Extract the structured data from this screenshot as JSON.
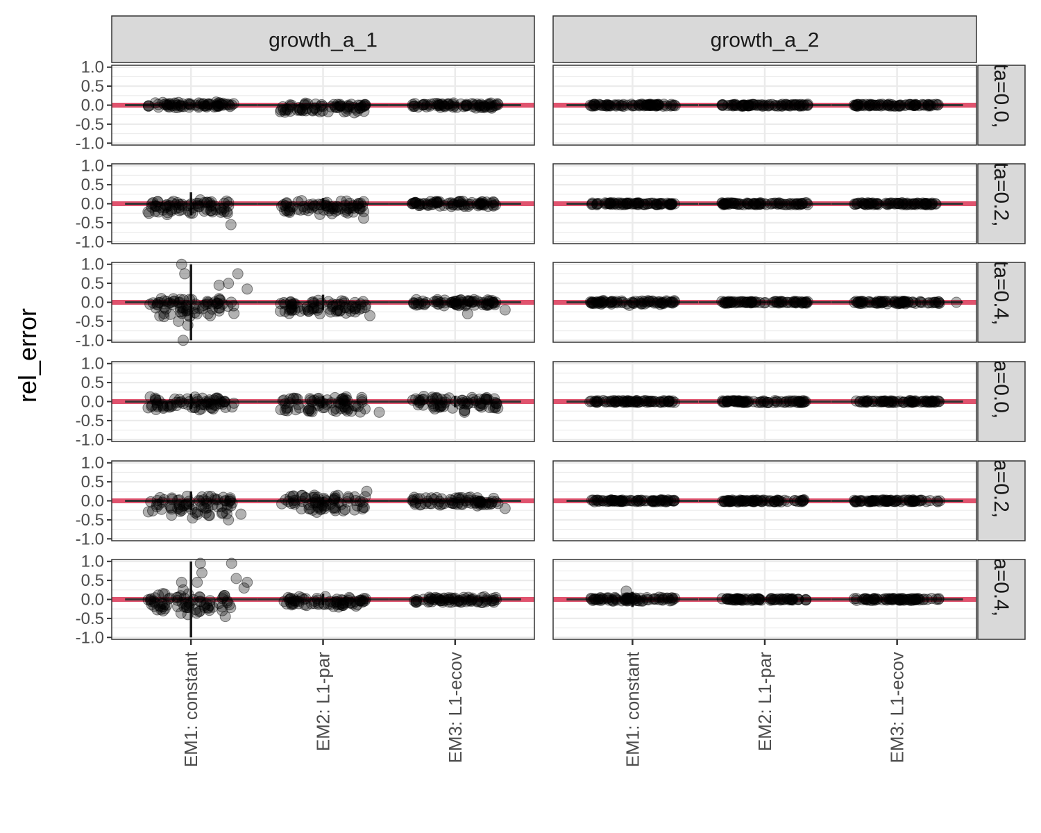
{
  "chart_data": {
    "type": "scatter",
    "ylabel": "rel_error",
    "xlabel": "",
    "ylim": [
      -1.05,
      1.05
    ],
    "y_ticks": [
      1.0,
      0.5,
      0.0,
      -0.5,
      -1.0
    ],
    "y_tick_labels": [
      "1.0",
      "0.5",
      "0.0",
      "-0.5",
      "-1.0"
    ],
    "categories": [
      "EM1: constant",
      "EM2: L1-par",
      "EM3: L1-ecov"
    ],
    "column_facets": [
      "growth_a_1",
      "growth_a_2"
    ],
    "row_facets": [
      "ta=0.0,",
      "ta=0.2,",
      "ta=0.4,",
      "a=0.0, ",
      "a=0.2, ",
      "a=0.4, "
    ],
    "reference_line": {
      "y": 0,
      "color": "#e0536e"
    },
    "colors": {
      "points": "#000000",
      "reference_line": "#e0536e",
      "strip_fill": "#d9d9d9",
      "panel_border": "#333333",
      "grid": "#ebebeb"
    },
    "grid": true,
    "points_alpha": 0.3,
    "panels": [
      {
        "col": 0,
        "row": 0,
        "spread": [
          [
            -0.08,
            0.1
          ],
          [
            -0.2,
            0.08
          ],
          [
            -0.08,
            0.06
          ]
        ],
        "line": [
          0.03,
          0.03,
          0.03
        ],
        "outliers": [
          [],
          [
            [
              1.0,
              -0.2
            ]
          ],
          []
        ]
      },
      {
        "col": 0,
        "row": 1,
        "spread": [
          [
            -0.3,
            0.15
          ],
          [
            -0.3,
            0.1
          ],
          [
            -0.08,
            0.08
          ]
        ],
        "line": [
          0.3,
          0.15,
          0.05
        ],
        "outliers": [
          [
            [
              1.28,
              -0.55
            ],
            [
              0.3,
              0.1
            ]
          ],
          [
            [
              -0.1,
              -0.28
            ],
            [
              1.3,
              -0.38
            ]
          ],
          []
        ]
      },
      {
        "col": 0,
        "row": 2,
        "spread": [
          [
            -0.4,
            0.15
          ],
          [
            -0.3,
            0.08
          ],
          [
            -0.1,
            0.08
          ]
        ],
        "line": [
          1.0,
          0.2,
          0.1
        ],
        "outliers": [
          [
            [
              -0.3,
              1.0
            ],
            [
              -0.2,
              0.75
            ],
            [
              -0.25,
              -1.0
            ],
            [
              -0.1,
              -0.6
            ],
            [
              1.2,
              0.5
            ],
            [
              1.5,
              0.75
            ],
            [
              1.8,
              0.35
            ],
            [
              -0.4,
              -0.5
            ],
            [
              0.9,
              0.45
            ]
          ],
          [
            [
              -0.1,
              -0.3
            ],
            [
              1.5,
              -0.35
            ]
          ],
          [
            [
              1.6,
              -0.2
            ],
            [
              0.4,
              -0.3
            ]
          ]
        ]
      },
      {
        "col": 0,
        "row": 3,
        "spread": [
          [
            -0.25,
            0.15
          ],
          [
            -0.3,
            0.15
          ],
          [
            -0.25,
            0.15
          ]
        ],
        "line": [
          0.2,
          0.15,
          0.15
        ],
        "outliers": [
          [],
          [
            [
              1.8,
              -0.28
            ]
          ],
          [
            [
              0.3,
              -0.28
            ]
          ]
        ]
      },
      {
        "col": 0,
        "row": 4,
        "spread": [
          [
            -0.45,
            0.15
          ],
          [
            -0.3,
            0.2
          ],
          [
            -0.15,
            0.12
          ]
        ],
        "line": [
          0.25,
          0.1,
          0.05
        ],
        "outliers": [
          [
            [
              0.05,
              -0.45
            ],
            [
              -0.3,
              -0.25
            ],
            [
              1.2,
              -0.5
            ],
            [
              1.6,
              -0.35
            ]
          ],
          [
            [
              -0.2,
              -0.3
            ],
            [
              1.4,
              0.25
            ]
          ],
          [
            [
              1.6,
              -0.2
            ]
          ]
        ]
      },
      {
        "col": 0,
        "row": 5,
        "spread": [
          [
            -0.4,
            0.2
          ],
          [
            -0.2,
            0.08
          ],
          [
            -0.1,
            0.08
          ]
        ],
        "line": [
          1.0,
          0.15,
          0.05
        ],
        "outliers": [
          [
            [
              -0.3,
              0.45
            ],
            [
              0.3,
              0.95
            ],
            [
              0.35,
              0.7
            ],
            [
              0.2,
              0.45
            ],
            [
              1.3,
              0.95
            ],
            [
              1.45,
              0.55
            ],
            [
              1.8,
              0.45
            ],
            [
              -0.25,
              0.25
            ],
            [
              1.7,
              0.3
            ],
            [
              -0.1,
              -0.4
            ],
            [
              1.1,
              -0.45
            ]
          ],
          [
            [
              0.5,
              -0.2
            ]
          ],
          []
        ]
      },
      {
        "col": 1,
        "row": 0,
        "spread": [
          [
            -0.03,
            0.03
          ],
          [
            -0.03,
            0.03
          ],
          [
            -0.03,
            0.03
          ]
        ],
        "line": [
          0.01,
          0.01,
          0.01
        ],
        "outliers": [
          [],
          [],
          []
        ]
      },
      {
        "col": 1,
        "row": 1,
        "spread": [
          [
            -0.03,
            0.03
          ],
          [
            -0.03,
            0.03
          ],
          [
            -0.03,
            0.03
          ]
        ],
        "line": [
          0.01,
          0.01,
          0.01
        ],
        "outliers": [
          [],
          [],
          []
        ]
      },
      {
        "col": 1,
        "row": 2,
        "spread": [
          [
            -0.06,
            0.06
          ],
          [
            -0.03,
            0.03
          ],
          [
            -0.04,
            0.04
          ]
        ],
        "line": [
          0.02,
          0.01,
          0.01
        ],
        "outliers": [
          [
            [
              -0.1,
              -0.08
            ]
          ],
          [],
          [
            [
              1.9,
              0.0
            ]
          ]
        ]
      },
      {
        "col": 1,
        "row": 3,
        "spread": [
          [
            -0.03,
            0.03
          ],
          [
            -0.03,
            0.03
          ],
          [
            -0.03,
            0.03
          ]
        ],
        "line": [
          0.01,
          0.01,
          0.01
        ],
        "outliers": [
          [],
          [],
          []
        ]
      },
      {
        "col": 1,
        "row": 4,
        "spread": [
          [
            -0.03,
            0.03
          ],
          [
            -0.03,
            0.03
          ],
          [
            -0.03,
            0.03
          ]
        ],
        "line": [
          0.01,
          0.01,
          0.01
        ],
        "outliers": [
          [],
          [],
          []
        ]
      },
      {
        "col": 1,
        "row": 5,
        "spread": [
          [
            -0.05,
            0.06
          ],
          [
            -0.03,
            0.03
          ],
          [
            -0.03,
            0.03
          ]
        ],
        "line": [
          0.2,
          0.01,
          0.01
        ],
        "outliers": [
          [
            [
              -0.2,
              0.22
            ]
          ],
          [],
          []
        ]
      }
    ]
  }
}
